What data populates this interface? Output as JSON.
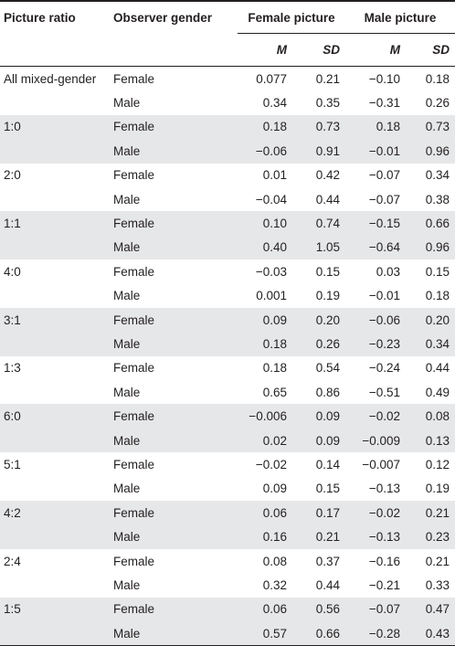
{
  "header": {
    "col_picture_ratio": "Picture ratio",
    "col_observer_gender": "Observer gender",
    "group_female": "Female picture",
    "group_male": "Male picture",
    "sub_m1": "M",
    "sub_sd1": "SD",
    "sub_m2": "M",
    "sub_sd2": "SD"
  },
  "rows": [
    {
      "ratio": "All mixed-gender",
      "gender": "Female",
      "fm": "0.077",
      "fsd": "0.21",
      "mm": "−0.10",
      "msd": "0.18"
    },
    {
      "ratio": "",
      "gender": "Male",
      "fm": "0.34",
      "fsd": "0.35",
      "mm": "−0.31",
      "msd": "0.26"
    },
    {
      "ratio": "1:0",
      "gender": "Female",
      "fm": "0.18",
      "fsd": "0.73",
      "mm": "0.18",
      "msd": "0.73"
    },
    {
      "ratio": "",
      "gender": "Male",
      "fm": "−0.06",
      "fsd": "0.91",
      "mm": "−0.01",
      "msd": "0.96"
    },
    {
      "ratio": "2:0",
      "gender": "Female",
      "fm": "0.01",
      "fsd": "0.42",
      "mm": "−0.07",
      "msd": "0.34"
    },
    {
      "ratio": "",
      "gender": "Male",
      "fm": "−0.04",
      "fsd": "0.44",
      "mm": "−0.07",
      "msd": "0.38"
    },
    {
      "ratio": "1:1",
      "gender": "Female",
      "fm": "0.10",
      "fsd": "0.74",
      "mm": "−0.15",
      "msd": "0.66"
    },
    {
      "ratio": "",
      "gender": "Male",
      "fm": "0.40",
      "fsd": "1.05",
      "mm": "−0.64",
      "msd": "0.96"
    },
    {
      "ratio": "4:0",
      "gender": "Female",
      "fm": "−0.03",
      "fsd": "0.15",
      "mm": "0.03",
      "msd": "0.15"
    },
    {
      "ratio": "",
      "gender": "Male",
      "fm": "0.001",
      "fsd": "0.19",
      "mm": "−0.01",
      "msd": "0.18"
    },
    {
      "ratio": "3:1",
      "gender": "Female",
      "fm": "0.09",
      "fsd": "0.20",
      "mm": "−0.06",
      "msd": "0.20"
    },
    {
      "ratio": "",
      "gender": "Male",
      "fm": "0.18",
      "fsd": "0.26",
      "mm": "−0.23",
      "msd": "0.34"
    },
    {
      "ratio": "1:3",
      "gender": "Female",
      "fm": "0.18",
      "fsd": "0.54",
      "mm": "−0.24",
      "msd": "0.44"
    },
    {
      "ratio": "",
      "gender": "Male",
      "fm": "0.65",
      "fsd": "0.86",
      "mm": "−0.51",
      "msd": "0.49"
    },
    {
      "ratio": "6:0",
      "gender": "Female",
      "fm": "−0.006",
      "fsd": "0.09",
      "mm": "−0.02",
      "msd": "0.08"
    },
    {
      "ratio": "",
      "gender": "Male",
      "fm": "0.02",
      "fsd": "0.09",
      "mm": "−0.009",
      "msd": "0.13"
    },
    {
      "ratio": "5:1",
      "gender": "Female",
      "fm": "−0.02",
      "fsd": "0.14",
      "mm": "−0.007",
      "msd": "0.12"
    },
    {
      "ratio": "",
      "gender": "Male",
      "fm": "0.09",
      "fsd": "0.15",
      "mm": "−0.13",
      "msd": "0.19"
    },
    {
      "ratio": "4:2",
      "gender": "Female",
      "fm": "0.06",
      "fsd": "0.17",
      "mm": "−0.02",
      "msd": "0.21"
    },
    {
      "ratio": "",
      "gender": "Male",
      "fm": "0.16",
      "fsd": "0.21",
      "mm": "−0.13",
      "msd": "0.23"
    },
    {
      "ratio": "2:4",
      "gender": "Female",
      "fm": "0.08",
      "fsd": "0.37",
      "mm": "−0.16",
      "msd": "0.21"
    },
    {
      "ratio": "",
      "gender": "Male",
      "fm": "0.32",
      "fsd": "0.44",
      "mm": "−0.21",
      "msd": "0.33"
    },
    {
      "ratio": "1:5",
      "gender": "Female",
      "fm": "0.06",
      "fsd": "0.56",
      "mm": "−0.07",
      "msd": "0.47"
    },
    {
      "ratio": "",
      "gender": "Male",
      "fm": "0.57",
      "fsd": "0.66",
      "mm": "−0.28",
      "msd": "0.43"
    }
  ],
  "colors": {
    "row_shade": "#e6e7e8",
    "text": "#231f20",
    "background": "#ffffff"
  }
}
